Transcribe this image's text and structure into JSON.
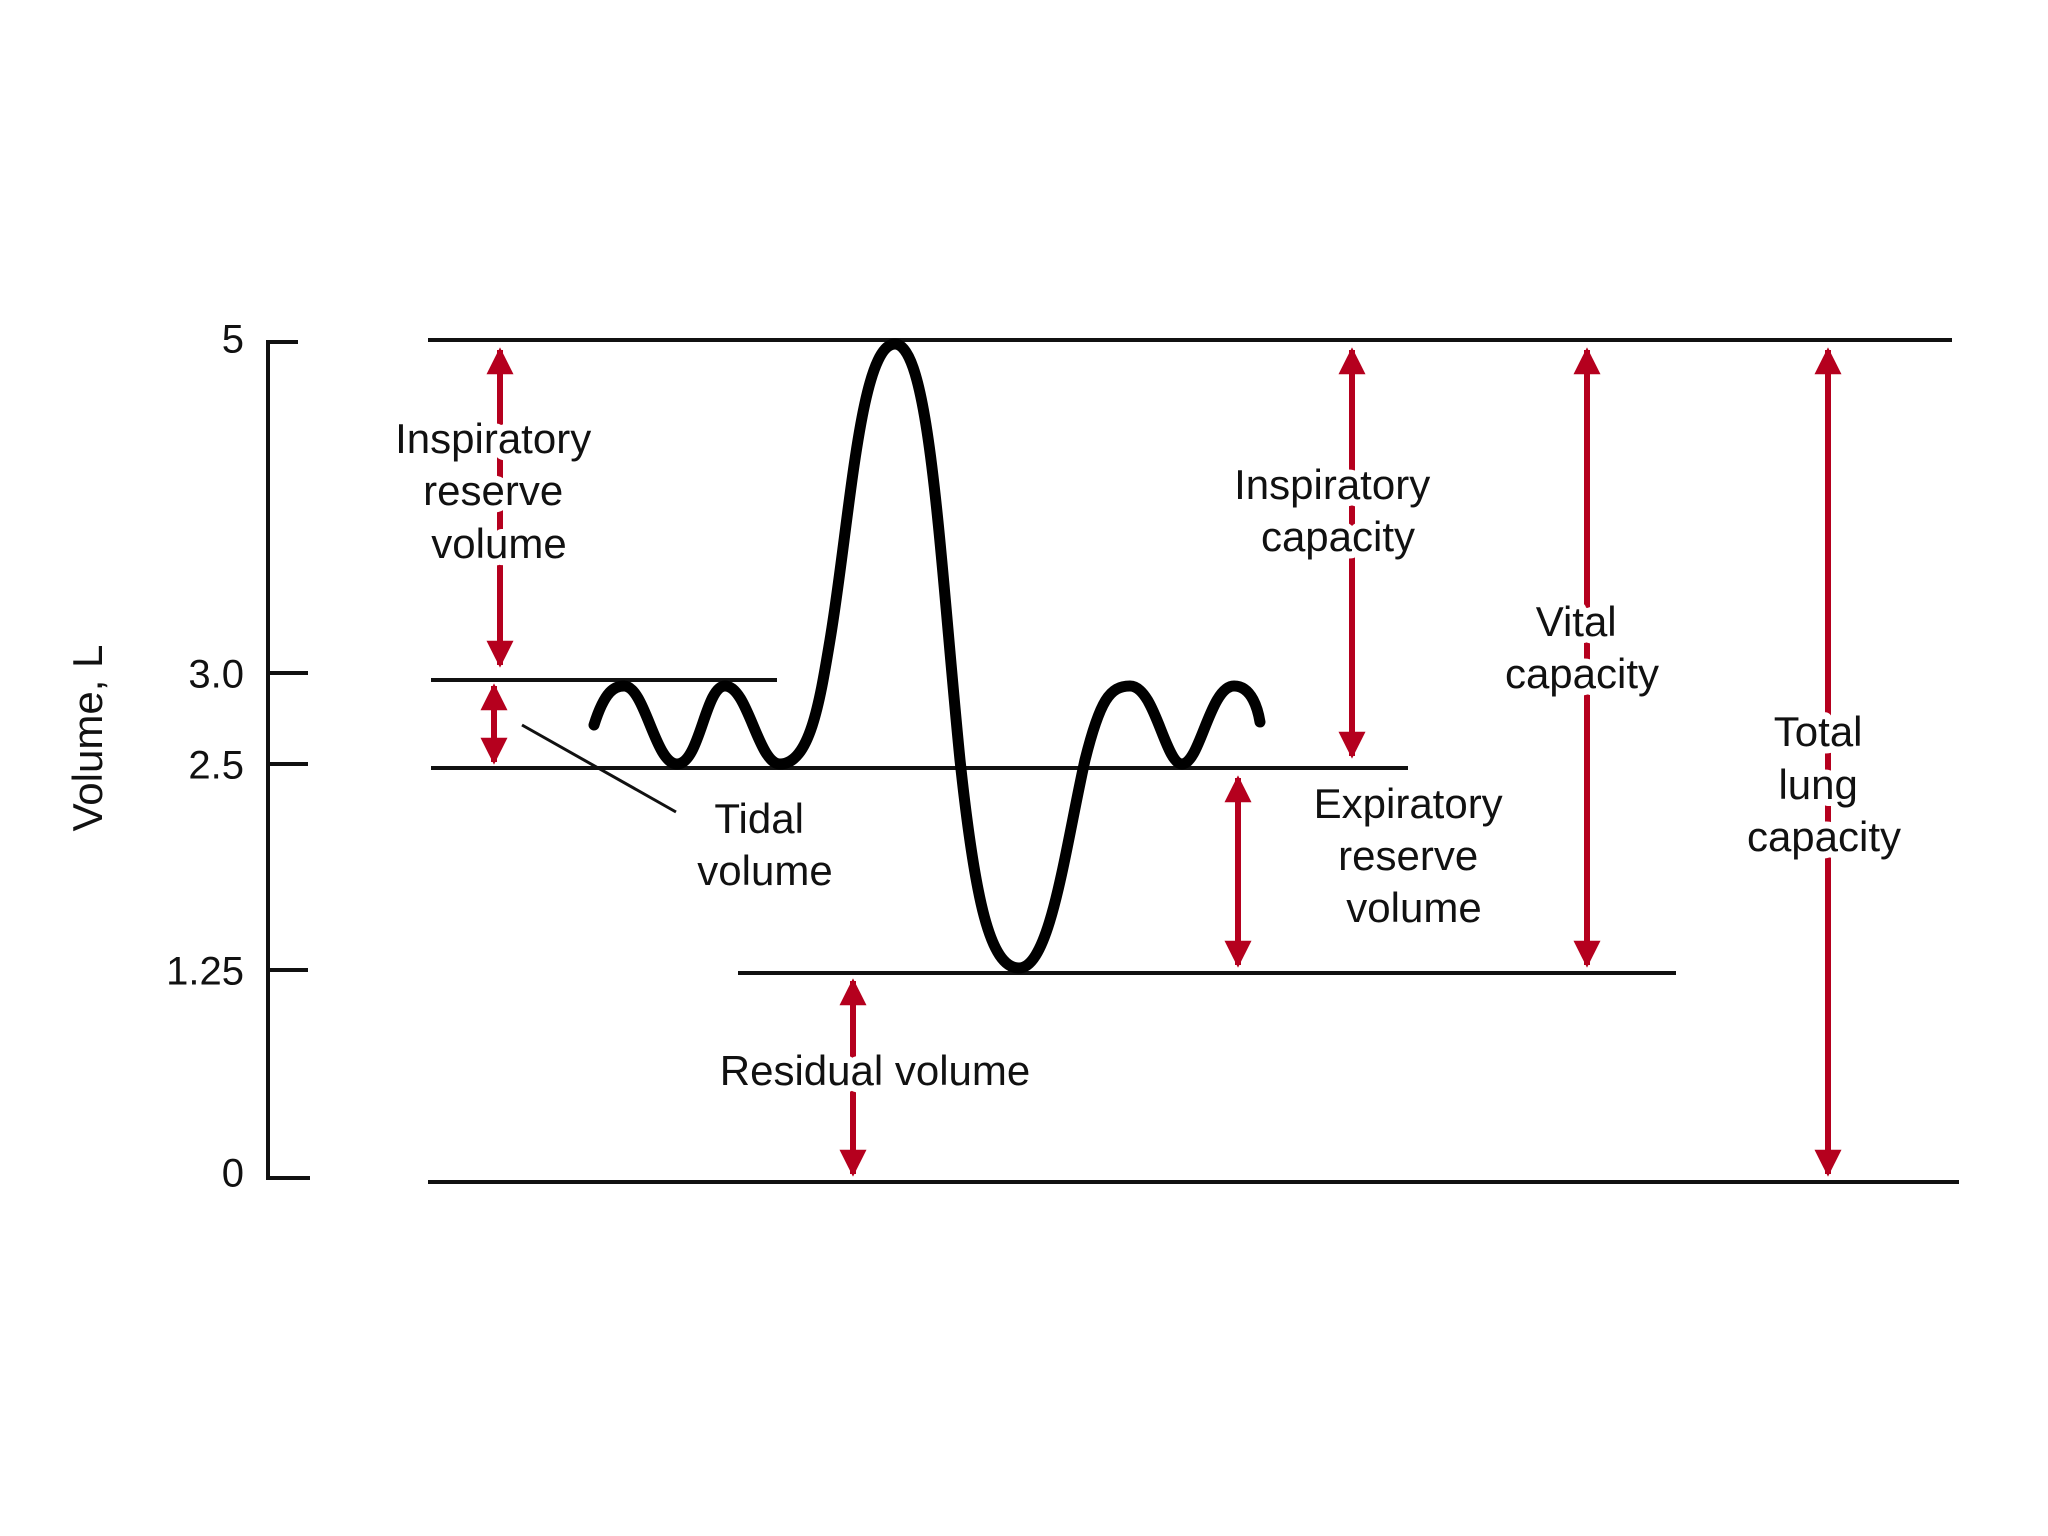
{
  "axis": {
    "label": "Volume, L",
    "ticks": [
      "5",
      "3.0",
      "2.5",
      "1.25",
      "0"
    ]
  },
  "labels": [
    [
      "Inspiratory",
      "reserve",
      "volume"
    ],
    [
      "Tidal",
      "volume"
    ],
    [
      "Inspiratory",
      "capacity"
    ],
    [
      "Vital",
      "capacity"
    ],
    [
      "Total",
      "lung",
      "capacity"
    ],
    [
      "Expiratory",
      "reserve",
      "volume"
    ],
    [
      "Residual volume"
    ]
  ]
}
